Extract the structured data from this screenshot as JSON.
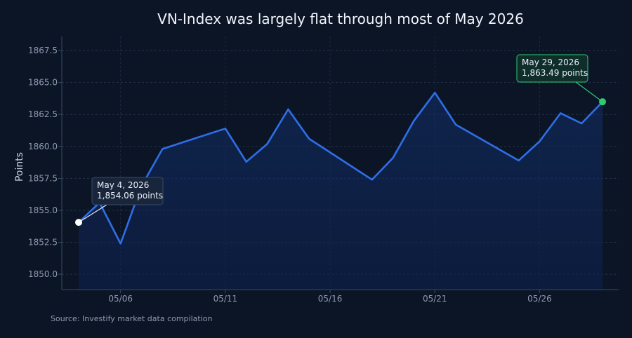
{
  "chart_data": {
    "type": "area",
    "title": "VN-Index was largely flat through most of May 2026",
    "ylabel": "Points",
    "xlabel": "",
    "source": "Source: Investify market data compilation",
    "ylim": [
      1848.8,
      1868.6
    ],
    "xlim": [
      "2026-05-04",
      "2026-05-29"
    ],
    "yticks": [
      1850.0,
      1852.5,
      1855.0,
      1857.5,
      1860.0,
      1862.5,
      1865.0,
      1867.5
    ],
    "ytick_labels": [
      "1850.0",
      "1852.5",
      "1855.0",
      "1857.5",
      "1860.0",
      "1862.5",
      "1865.0",
      "1867.5"
    ],
    "xticks": [
      "2026-05-06",
      "2026-05-11",
      "2026-05-16",
      "2026-05-21",
      "2026-05-26"
    ],
    "xtick_labels": [
      "05/06",
      "05/11",
      "05/16",
      "05/21",
      "05/26"
    ],
    "grid": true,
    "line_color": "#2f6ee8",
    "start_marker_color": "#ffffff",
    "end_marker_color": "#2ecc71",
    "x": [
      "2026-05-04",
      "2026-05-05",
      "2026-05-06",
      "2026-05-07",
      "2026-05-08",
      "2026-05-11",
      "2026-05-12",
      "2026-05-13",
      "2026-05-14",
      "2026-05-15",
      "2026-05-18",
      "2026-05-19",
      "2026-05-20",
      "2026-05-21",
      "2026-05-22",
      "2026-05-25",
      "2026-05-26",
      "2026-05-27",
      "2026-05-28",
      "2026-05-29"
    ],
    "values": [
      1854.06,
      1855.6,
      1852.4,
      1856.9,
      1859.8,
      1861.4,
      1858.8,
      1860.2,
      1862.9,
      1860.6,
      1857.4,
      1859.1,
      1862.0,
      1864.2,
      1861.7,
      1858.9,
      1860.4,
      1862.6,
      1861.8,
      1863.49
    ],
    "annotations": [
      {
        "date": "2026-05-04",
        "value": 1854.06,
        "line1": "May 4, 2026",
        "line2": "1,854.06 points",
        "border": "#3a4a66",
        "bg": "#18253a"
      },
      {
        "date": "2026-05-29",
        "value": 1863.49,
        "line1": "May 29, 2026",
        "line2": "1,863.49 points",
        "border": "#2ecc71",
        "bg": "#0f2e2a"
      }
    ]
  }
}
